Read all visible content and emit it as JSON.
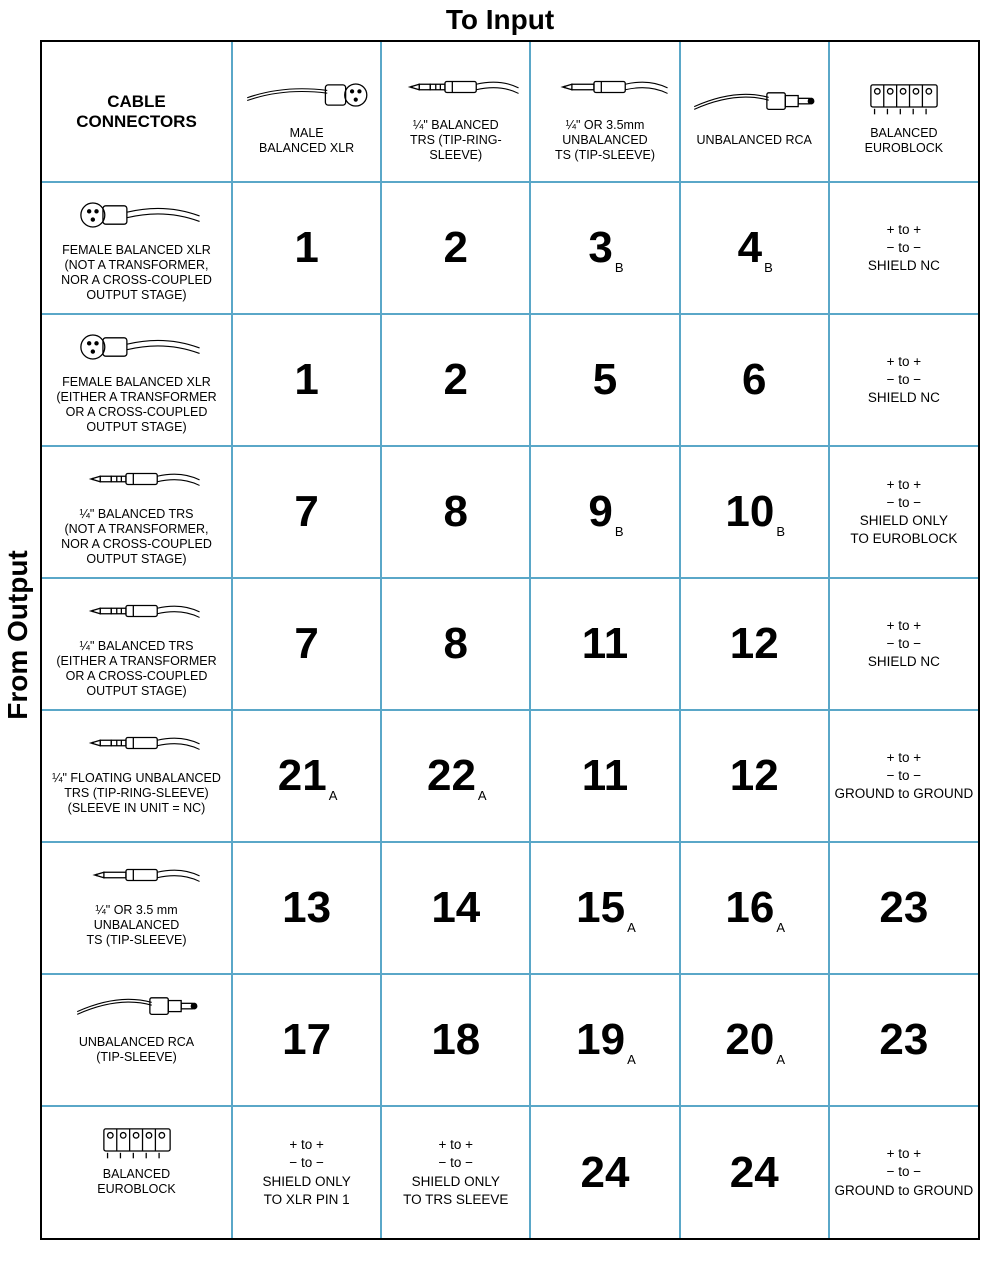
{
  "titles": {
    "top": "To Input",
    "left": "From Output",
    "corner": "CABLE\nCONNECTORS"
  },
  "cols": [
    {
      "icon": "xlr-male",
      "label": "MALE\nBALANCED XLR"
    },
    {
      "icon": "trs",
      "label": "¼\" BALANCED\nTRS (TIP-RING-SLEEVE)"
    },
    {
      "icon": "ts",
      "label": "¼\" OR 3.5mm\nUNBALANCED\nTS (TIP-SLEEVE)"
    },
    {
      "icon": "rca",
      "label": "UNBALANCED RCA"
    },
    {
      "icon": "euroblock",
      "label": "BALANCED\nEUROBLOCK"
    }
  ],
  "rows": [
    {
      "icon": "xlr-female",
      "label": "FEMALE BALANCED XLR\n(NOT A TRANSFORMER,\nNOR A CROSS-COUPLED\nOUTPUT STAGE)"
    },
    {
      "icon": "xlr-female",
      "label": "FEMALE BALANCED XLR\n(EITHER A TRANSFORMER\nOR A CROSS-COUPLED\nOUTPUT STAGE)"
    },
    {
      "icon": "trs",
      "label": "¼\" BALANCED TRS\n(NOT A TRANSFORMER,\nNOR A CROSS-COUPLED\nOUTPUT STAGE)"
    },
    {
      "icon": "trs",
      "label": "¼\" BALANCED TRS\n(EITHER A TRANSFORMER\nOR A CROSS-COUPLED\nOUTPUT STAGE)"
    },
    {
      "icon": "trs",
      "label": "¼\" FLOATING UNBALANCED\nTRS (TIP-RING-SLEEVE)\n(SLEEVE IN UNIT = NC)"
    },
    {
      "icon": "ts",
      "label": "¼\" OR 3.5 mm\nUNBALANCED\nTS (TIP-SLEEVE)"
    },
    {
      "icon": "rca",
      "label": "UNBALANCED RCA\n(TIP-SLEEVE)"
    },
    {
      "icon": "euroblock",
      "label": "BALANCED\nEUROBLOCK"
    }
  ],
  "cells": [
    [
      {
        "n": "1"
      },
      {
        "n": "2"
      },
      {
        "n": "3",
        "s": "B"
      },
      {
        "n": "4",
        "s": "B"
      },
      {
        "euro": [
          "+ to +",
          "− to −",
          "SHIELD NC"
        ]
      }
    ],
    [
      {
        "n": "1"
      },
      {
        "n": "2"
      },
      {
        "n": "5"
      },
      {
        "n": "6"
      },
      {
        "euro": [
          "+ to +",
          "− to −",
          "SHIELD NC"
        ]
      }
    ],
    [
      {
        "n": "7"
      },
      {
        "n": "8"
      },
      {
        "n": "9",
        "s": "B"
      },
      {
        "n": "10",
        "s": "B"
      },
      {
        "euro": [
          "+ to +",
          "− to −",
          "SHIELD ONLY",
          "TO EUROBLOCK"
        ]
      }
    ],
    [
      {
        "n": "7"
      },
      {
        "n": "8"
      },
      {
        "n": "11"
      },
      {
        "n": "12"
      },
      {
        "euro": [
          "+ to +",
          "− to −",
          "SHIELD NC"
        ]
      }
    ],
    [
      {
        "n": "21",
        "s": "A"
      },
      {
        "n": "22",
        "s": "A"
      },
      {
        "n": "11"
      },
      {
        "n": "12"
      },
      {
        "euro": [
          "+ to +",
          "− to −",
          "GROUND to GROUND"
        ]
      }
    ],
    [
      {
        "n": "13"
      },
      {
        "n": "14"
      },
      {
        "n": "15",
        "s": "A"
      },
      {
        "n": "16",
        "s": "A"
      },
      {
        "n": "23"
      }
    ],
    [
      {
        "n": "17"
      },
      {
        "n": "18"
      },
      {
        "n": "19",
        "s": "A"
      },
      {
        "n": "20",
        "s": "A"
      },
      {
        "n": "23"
      }
    ],
    [
      {
        "euro": [
          "+ to +",
          "− to −",
          "SHIELD ONLY",
          "TO XLR PIN 1"
        ]
      },
      {
        "euro": [
          "+ to +",
          "− to −",
          "SHIELD ONLY",
          "TO TRS SLEEVE"
        ]
      },
      {
        "n": "24"
      },
      {
        "n": "24"
      },
      {
        "euro": [
          "+ to +",
          "− to −",
          "GROUND to GROUND"
        ]
      }
    ]
  ],
  "style": {
    "border_color": "#5aa7c8",
    "outer_border": "#000000",
    "bignum_fontsize": 44,
    "label_fontsize": 12.5,
    "title_fontsize": 28
  }
}
